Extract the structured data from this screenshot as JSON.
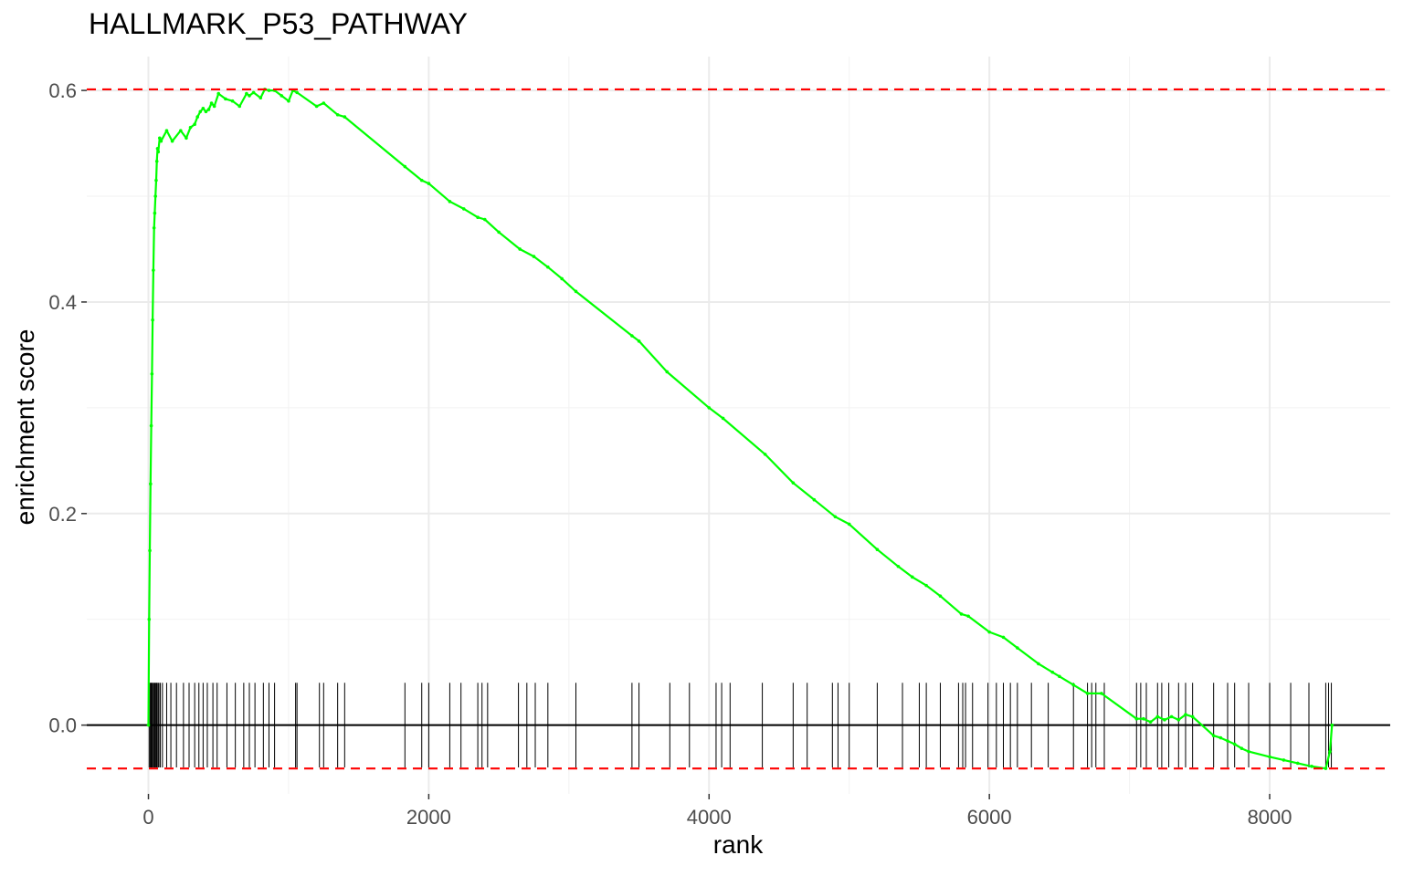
{
  "chart_data": {
    "type": "line",
    "title": "HALLMARK_P53_PATHWAY",
    "xlabel": "rank",
    "ylabel": "enrichment score",
    "xlim": [
      -440,
      8860
    ],
    "ylim": [
      -0.065,
      0.632
    ],
    "x_ticks": [
      0,
      2000,
      4000,
      6000,
      8000
    ],
    "x_tick_labels": [
      "0",
      "2000",
      "4000",
      "6000",
      "8000"
    ],
    "y_ticks": [
      0.0,
      0.2,
      0.4,
      0.6
    ],
    "y_tick_labels": [
      "0.0",
      "0.2",
      "0.4",
      "0.6"
    ],
    "grid": true,
    "max_es": 0.601,
    "min_es": -0.041,
    "line_color": "#00ff00",
    "threshold_color": "#ff0000",
    "rug_color": "#000000",
    "series": [
      {
        "x": [
          0,
          5,
          10,
          15,
          20,
          25,
          30,
          35,
          40,
          45,
          50,
          55,
          60,
          65,
          70,
          80,
          90,
          130,
          170,
          230,
          270,
          300,
          330,
          350,
          370,
          390,
          410,
          430,
          450,
          470,
          500,
          550,
          600,
          650,
          700,
          720,
          750,
          800,
          830,
          860,
          900,
          950,
          1000,
          1030,
          1060,
          1200,
          1250,
          1350,
          1400,
          1830,
          1950,
          2000,
          2150,
          2250,
          2350,
          2400,
          2500,
          2650,
          2750,
          2850,
          2950,
          3050,
          3450,
          3500,
          3700,
          4000,
          4100,
          4400,
          4600,
          4750,
          4900,
          5000,
          5200,
          5350,
          5450,
          5550,
          5650,
          5800,
          5850,
          6000,
          6100,
          6200,
          6350,
          6450,
          6500,
          6600,
          6700,
          6800,
          7050,
          7100,
          7150,
          7200,
          7250,
          7300,
          7350,
          7400,
          7450,
          7600,
          7650,
          7700,
          7750,
          7800,
          7850,
          8000,
          8100,
          8200,
          8300,
          8400,
          8430,
          8445
        ],
        "values": [
          0.0,
          0.1,
          0.165,
          0.228,
          0.283,
          0.332,
          0.383,
          0.43,
          0.47,
          0.484,
          0.5,
          0.515,
          0.533,
          0.545,
          0.542,
          0.555,
          0.552,
          0.562,
          0.552,
          0.562,
          0.555,
          0.565,
          0.568,
          0.575,
          0.58,
          0.583,
          0.58,
          0.582,
          0.588,
          0.585,
          0.597,
          0.592,
          0.59,
          0.585,
          0.597,
          0.595,
          0.598,
          0.593,
          0.601,
          0.6,
          0.6,
          0.595,
          0.59,
          0.6,
          0.598,
          0.585,
          0.588,
          0.577,
          0.575,
          0.528,
          0.515,
          0.512,
          0.495,
          0.488,
          0.48,
          0.478,
          0.466,
          0.45,
          0.443,
          0.433,
          0.422,
          0.41,
          0.368,
          0.363,
          0.334,
          0.3,
          0.29,
          0.256,
          0.229,
          0.213,
          0.197,
          0.19,
          0.166,
          0.15,
          0.14,
          0.132,
          0.122,
          0.105,
          0.103,
          0.088,
          0.083,
          0.073,
          0.058,
          0.05,
          0.046,
          0.038,
          0.03,
          0.03,
          0.006,
          0.006,
          0.003,
          0.008,
          0.005,
          0.008,
          0.005,
          0.01,
          0.008,
          -0.01,
          -0.012,
          -0.015,
          -0.018,
          -0.022,
          -0.025,
          -0.03,
          -0.033,
          -0.036,
          -0.039,
          -0.041,
          -0.025,
          0.0
        ]
      }
    ],
    "hit_ranks": [
      5,
      12,
      18,
      22,
      28,
      35,
      42,
      48,
      55,
      60,
      68,
      75,
      85,
      100,
      130,
      160,
      200,
      250,
      290,
      330,
      360,
      390,
      420,
      460,
      490,
      560,
      620,
      680,
      720,
      760,
      820,
      860,
      900,
      1050,
      1060,
      1220,
      1250,
      1350,
      1400,
      1830,
      1950,
      2000,
      2150,
      2230,
      2350,
      2380,
      2420,
      2640,
      2700,
      2760,
      2850,
      3050,
      3450,
      3500,
      3720,
      3860,
      4050,
      4090,
      4150,
      4380,
      4600,
      4700,
      4880,
      4920,
      5000,
      5200,
      5380,
      5500,
      5550,
      5650,
      5780,
      5810,
      5830,
      5880,
      5990,
      6050,
      6100,
      6150,
      6200,
      6300,
      6420,
      6600,
      6700,
      6730,
      6760,
      6820,
      7050,
      7080,
      7120,
      7200,
      7230,
      7280,
      7350,
      7400,
      7450,
      7600,
      7700,
      7750,
      7850,
      8000,
      8150,
      8280,
      8400,
      8420,
      8440
    ]
  }
}
